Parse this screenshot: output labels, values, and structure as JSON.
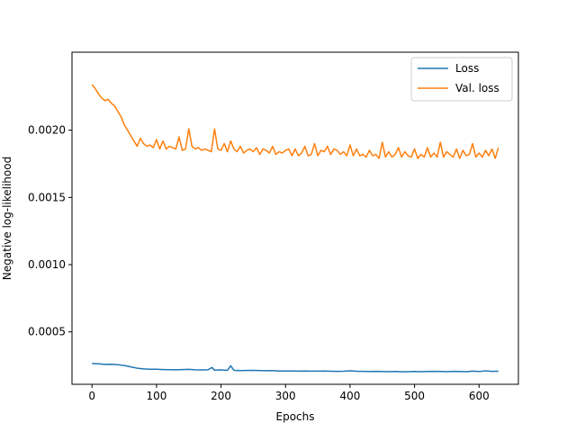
{
  "chart_data": {
    "type": "line",
    "title": "",
    "xlabel": "Epochs",
    "ylabel": "Negative log-likelihood",
    "xlim": [
      -31,
      661
    ],
    "ylim": [
      0.00011,
      0.00258
    ],
    "xticks": [
      0,
      100,
      200,
      300,
      400,
      500,
      600
    ],
    "xtick_labels": [
      "0",
      "100",
      "200",
      "300",
      "400",
      "500",
      "600"
    ],
    "yticks": [
      0.0005,
      0.001,
      0.0015,
      0.002
    ],
    "ytick_labels": [
      "0.0005",
      "0.0010",
      "0.0015",
      "0.0020"
    ],
    "grid": false,
    "legend_position": "top-right",
    "series": [
      {
        "name": "Loss",
        "color": "#1f77b4",
        "x": [
          0,
          10,
          20,
          30,
          40,
          50,
          60,
          70,
          80,
          90,
          100,
          110,
          120,
          130,
          140,
          150,
          160,
          170,
          180,
          186,
          190,
          200,
          210,
          215,
          220,
          230,
          240,
          250,
          260,
          270,
          280,
          290,
          300,
          310,
          320,
          330,
          340,
          350,
          360,
          370,
          380,
          390,
          400,
          410,
          420,
          430,
          440,
          450,
          460,
          470,
          480,
          490,
          500,
          510,
          520,
          530,
          540,
          550,
          560,
          570,
          580,
          590,
          600,
          610,
          620,
          630
        ],
        "y": [
          0.000265,
          0.000262,
          0.000258,
          0.000259,
          0.000256,
          0.00025,
          0.00024,
          0.00023,
          0.000225,
          0.000222,
          0.000222,
          0.00022,
          0.000219,
          0.000218,
          0.00022,
          0.000221,
          0.000218,
          0.000217,
          0.000218,
          0.000235,
          0.000215,
          0.000217,
          0.000214,
          0.000248,
          0.000214,
          0.000212,
          0.000213,
          0.000214,
          0.000212,
          0.000211,
          0.000212,
          0.000209,
          0.000209,
          0.000209,
          0.000208,
          0.000209,
          0.000208,
          0.000208,
          0.000209,
          0.000207,
          0.000206,
          0.000207,
          0.00021,
          0.000207,
          0.000206,
          0.000205,
          0.000206,
          0.000205,
          0.000204,
          0.000205,
          0.000203,
          0.000204,
          0.000205,
          0.000204,
          0.000205,
          0.000206,
          0.000205,
          0.000204,
          0.000206,
          0.000205,
          0.000204,
          0.000208,
          0.000205,
          0.00021,
          0.000206,
          0.000207
        ]
      },
      {
        "name": "Val. loss",
        "color": "#ff7f0e",
        "x": [
          0,
          5,
          10,
          15,
          20,
          25,
          30,
          35,
          40,
          45,
          50,
          55,
          60,
          65,
          70,
          75,
          80,
          85,
          90,
          95,
          100,
          105,
          110,
          115,
          120,
          125,
          130,
          135,
          140,
          145,
          150,
          155,
          160,
          165,
          170,
          175,
          180,
          185,
          190,
          195,
          200,
          205,
          210,
          215,
          220,
          225,
          230,
          235,
          240,
          245,
          250,
          255,
          260,
          265,
          270,
          275,
          280,
          285,
          290,
          295,
          300,
          305,
          310,
          315,
          320,
          325,
          330,
          335,
          340,
          345,
          350,
          355,
          360,
          365,
          370,
          375,
          380,
          385,
          390,
          395,
          400,
          405,
          410,
          415,
          420,
          425,
          430,
          435,
          440,
          445,
          450,
          455,
          460,
          465,
          470,
          475,
          480,
          485,
          490,
          495,
          500,
          505,
          510,
          515,
          520,
          525,
          530,
          535,
          540,
          545,
          550,
          555,
          560,
          565,
          570,
          575,
          580,
          585,
          590,
          595,
          600,
          605,
          610,
          615,
          620,
          625,
          630
        ],
        "y": [
          0.00234,
          0.00231,
          0.00227,
          0.00224,
          0.00222,
          0.00223,
          0.0022,
          0.00218,
          0.00214,
          0.0021,
          0.00204,
          0.002,
          0.00196,
          0.00192,
          0.00188,
          0.00194,
          0.0019,
          0.00188,
          0.00189,
          0.00187,
          0.00193,
          0.00186,
          0.00192,
          0.00186,
          0.00188,
          0.00187,
          0.00186,
          0.00195,
          0.00185,
          0.00186,
          0.00201,
          0.00188,
          0.00186,
          0.00187,
          0.00185,
          0.00186,
          0.00185,
          0.00184,
          0.00201,
          0.00186,
          0.00185,
          0.0019,
          0.00184,
          0.00192,
          0.00186,
          0.00184,
          0.00188,
          0.00183,
          0.00185,
          0.00186,
          0.00184,
          0.00187,
          0.00182,
          0.00186,
          0.00185,
          0.00183,
          0.00188,
          0.00182,
          0.00184,
          0.00183,
          0.00185,
          0.00186,
          0.00181,
          0.00186,
          0.00181,
          0.00183,
          0.00188,
          0.00181,
          0.00182,
          0.0019,
          0.00181,
          0.00185,
          0.00184,
          0.00188,
          0.00182,
          0.00186,
          0.00185,
          0.00182,
          0.00184,
          0.00181,
          0.00189,
          0.00181,
          0.00186,
          0.00181,
          0.00182,
          0.0018,
          0.00185,
          0.00181,
          0.00182,
          0.00179,
          0.00191,
          0.0018,
          0.00184,
          0.0018,
          0.00182,
          0.00187,
          0.0018,
          0.00184,
          0.00181,
          0.0018,
          0.00186,
          0.00179,
          0.00182,
          0.0018,
          0.00187,
          0.0018,
          0.00183,
          0.0018,
          0.00191,
          0.0018,
          0.00184,
          0.00182,
          0.0018,
          0.00186,
          0.00179,
          0.00185,
          0.00181,
          0.00182,
          0.0019,
          0.0018,
          0.00183,
          0.0018,
          0.00185,
          0.00181,
          0.00186,
          0.00179,
          0.00187
        ]
      }
    ]
  }
}
